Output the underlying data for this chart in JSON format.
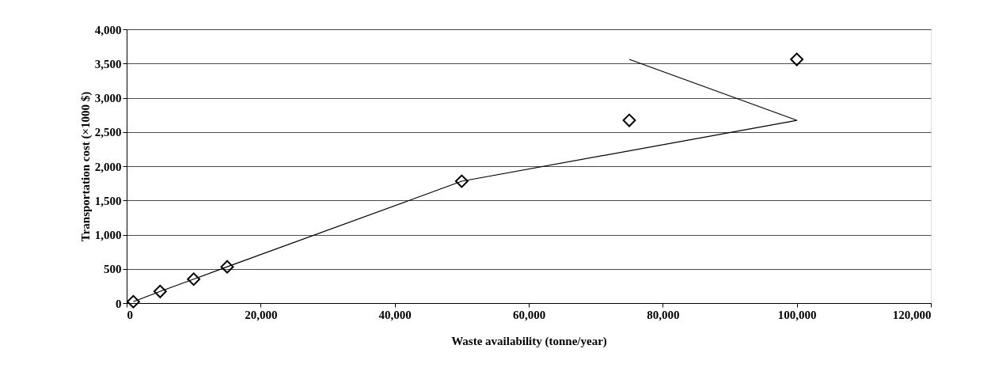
{
  "chart_data": {
    "type": "scatter",
    "xlabel": "Waste availability (tonne/year)",
    "ylabel": "Transportation cost (×1000 $)",
    "x": [
      1000,
      5000,
      10000,
      15000,
      50000,
      75000,
      100000
    ],
    "series": [
      {
        "type": "scatter",
        "color": "#000000",
        "marker": "diamond",
        "values": [
          20,
          170,
          350,
          530,
          1780,
          2670,
          3560
        ]
      },
      {
        "type": "line",
        "color": "#000000",
        "marker": "none",
        "x": [
          1000,
          5000,
          10000,
          15000,
          50000,
          100000,
          75000
        ],
        "values": [
          20,
          170,
          350,
          530,
          1780,
          2670,
          3560
        ]
      }
    ],
    "xlim": [
      0,
      120000
    ],
    "xticks": [
      0,
      {
        "value": 20000,
        "label": "20,000"
      },
      {
        "value": 40000,
        "label": "40,000"
      },
      {
        "value": 60000,
        "label": "60,000"
      },
      {
        "value": 80000,
        "label": "80,000"
      },
      {
        "value": 100000,
        "label": "100,000"
      },
      {
        "value": 120000,
        "label": "120,000"
      }
    ],
    "ylim": [
      0,
      4000
    ],
    "yticks": [
      0,
      500,
      {
        "value": 1000,
        "label": "1,000"
      },
      {
        "value": 1500,
        "label": "1,500"
      },
      {
        "value": 2000,
        "label": "2,000"
      },
      {
        "value": 2500,
        "label": "2,500"
      },
      {
        "value": 3000,
        "label": "3,000"
      },
      {
        "value": 3500,
        "label": "3,500"
      },
      {
        "value": 4000,
        "label": "4,000"
      }
    ],
    "grid": "y"
  }
}
